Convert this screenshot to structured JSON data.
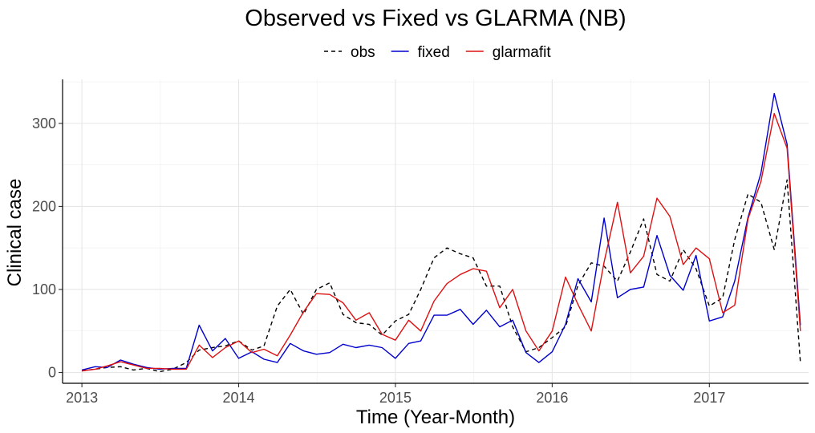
{
  "chart_data": {
    "type": "line",
    "title": "Observed vs Fixed vs GLARMA (NB)",
    "xlabel": "Time (Year-Month)",
    "ylabel": "Clinical case",
    "xlim": [
      "2012-11-17",
      "2017-08-20"
    ],
    "ylim": [
      -13,
      353
    ],
    "x_ticks": [
      "2013",
      "2014",
      "2015",
      "2016",
      "2017"
    ],
    "y_ticks": [
      0,
      100,
      200,
      300
    ],
    "grid": true,
    "legend": {
      "position": "top",
      "entries": [
        {
          "label": "obs",
          "color": "#000000",
          "style": "dashed"
        },
        {
          "label": "fixed",
          "color": "#0000cc",
          "style": "solid"
        },
        {
          "label": "glarmafit",
          "color": "#dd1111",
          "style": "solid"
        }
      ]
    },
    "x": [
      "2013-01",
      "2013-02",
      "2013-03",
      "2013-04",
      "2013-05",
      "2013-06",
      "2013-07",
      "2013-08",
      "2013-09",
      "2013-10",
      "2013-11",
      "2013-12",
      "2014-01",
      "2014-02",
      "2014-03",
      "2014-04",
      "2014-05",
      "2014-06",
      "2014-07",
      "2014-08",
      "2014-09",
      "2014-10",
      "2014-11",
      "2014-12",
      "2015-01",
      "2015-02",
      "2015-03",
      "2015-04",
      "2015-05",
      "2015-06",
      "2015-07",
      "2015-08",
      "2015-09",
      "2015-10",
      "2015-11",
      "2015-12",
      "2016-01",
      "2016-02",
      "2016-03",
      "2016-04",
      "2016-05",
      "2016-06",
      "2016-07",
      "2016-08",
      "2016-09",
      "2016-10",
      "2016-11",
      "2016-12",
      "2017-01",
      "2017-02",
      "2017-03",
      "2017-04",
      "2017-05",
      "2017-06",
      "2017-07",
      "2017-08"
    ],
    "series": [
      {
        "name": "obs",
        "values": [
          2,
          4,
          6,
          7,
          3,
          5,
          1,
          4,
          12,
          27,
          30,
          32,
          38,
          27,
          32,
          80,
          100,
          70,
          100,
          108,
          70,
          60,
          58,
          45,
          62,
          70,
          100,
          138,
          150,
          143,
          138,
          104,
          104,
          55,
          25,
          30,
          42,
          55,
          105,
          132,
          128,
          110,
          145,
          185,
          118,
          110,
          148,
          125,
          80,
          90,
          160,
          215,
          205,
          148,
          232,
          12
        ]
      },
      {
        "name": "fixed",
        "values": [
          3,
          7,
          6,
          15,
          10,
          6,
          4,
          5,
          5,
          57,
          26,
          41,
          17,
          25,
          16,
          12,
          35,
          26,
          22,
          24,
          34,
          30,
          33,
          30,
          17,
          35,
          38,
          69,
          69,
          76,
          58,
          75,
          55,
          63,
          24,
          12,
          25,
          58,
          113,
          85,
          186,
          90,
          100,
          103,
          165,
          117,
          99,
          141,
          62,
          67,
          110,
          187,
          240,
          336,
          275,
          57
        ]
      },
      {
        "name": "glarmafit",
        "values": [
          2,
          4,
          8,
          13,
          9,
          5,
          5,
          4,
          4,
          33,
          18,
          30,
          38,
          24,
          28,
          20,
          45,
          73,
          95,
          94,
          84,
          63,
          72,
          46,
          39,
          63,
          50,
          86,
          107,
          118,
          125,
          122,
          78,
          100,
          50,
          26,
          50,
          115,
          82,
          50,
          133,
          205,
          120,
          140,
          210,
          188,
          130,
          150,
          137,
          72,
          81,
          185,
          230,
          312,
          270,
          50
        ]
      }
    ]
  }
}
